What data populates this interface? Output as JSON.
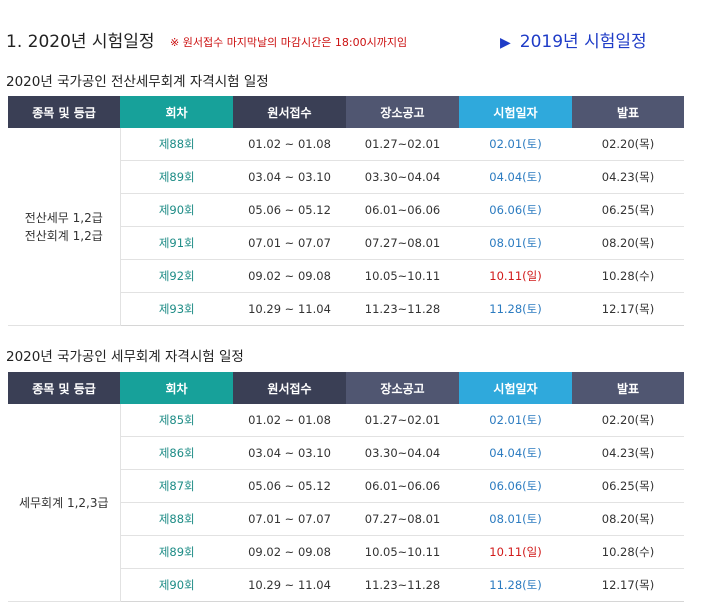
{
  "header": {
    "title": "1. 2020년 시험일정",
    "note": "※ 원서접수 마지막날의 마감시간은 18:00시까지임",
    "link_label": "2019년 시험일정"
  },
  "columns": [
    "종목 및 등급",
    "회차",
    "원서접수",
    "장소공고",
    "시험일자",
    "발표"
  ],
  "sections": [
    {
      "title": "2020년 국가공인 전산세무회계 자격시험 일정",
      "grade_lines": [
        "전산세무 1,2급",
        "전산회계 1,2급"
      ],
      "rows": [
        {
          "round": "제88회",
          "apply": "01.02 ~ 01.08",
          "venue": "01.27~02.01",
          "exam": "02.01(토)",
          "result": "02.20(목)",
          "exam_color": "blue"
        },
        {
          "round": "제89회",
          "apply": "03.04 ~ 03.10",
          "venue": "03.30~04.04",
          "exam": "04.04(토)",
          "result": "04.23(목)",
          "exam_color": "blue"
        },
        {
          "round": "제90회",
          "apply": "05.06 ~ 05.12",
          "venue": "06.01~06.06",
          "exam": "06.06(토)",
          "result": "06.25(목)",
          "exam_color": "blue"
        },
        {
          "round": "제91회",
          "apply": "07.01 ~ 07.07",
          "venue": "07.27~08.01",
          "exam": "08.01(토)",
          "result": "08.20(목)",
          "exam_color": "blue"
        },
        {
          "round": "제92회",
          "apply": "09.02 ~ 09.08",
          "venue": "10.05~10.11",
          "exam": "10.11(일)",
          "result": "10.28(수)",
          "exam_color": "red"
        },
        {
          "round": "제93회",
          "apply": "10.29 ~ 11.04",
          "venue": "11.23~11.28",
          "exam": "11.28(토)",
          "result": "12.17(목)",
          "exam_color": "blue"
        }
      ]
    },
    {
      "title": "2020년 국가공인 세무회계 자격시험 일정",
      "grade_lines": [
        "세무회계 1,2,3급"
      ],
      "rows": [
        {
          "round": "제85회",
          "apply": "01.02 ~ 01.08",
          "venue": "01.27~02.01",
          "exam": "02.01(토)",
          "result": "02.20(목)",
          "exam_color": "blue"
        },
        {
          "round": "제86회",
          "apply": "03.04 ~ 03.10",
          "venue": "03.30~04.04",
          "exam": "04.04(토)",
          "result": "04.23(목)",
          "exam_color": "blue"
        },
        {
          "round": "제87회",
          "apply": "05.06 ~ 05.12",
          "venue": "06.01~06.06",
          "exam": "06.06(토)",
          "result": "06.25(목)",
          "exam_color": "blue"
        },
        {
          "round": "제88회",
          "apply": "07.01 ~ 07.07",
          "venue": "07.27~08.01",
          "exam": "08.01(토)",
          "result": "08.20(목)",
          "exam_color": "blue"
        },
        {
          "round": "제89회",
          "apply": "09.02 ~ 09.08",
          "venue": "10.05~10.11",
          "exam": "10.11(일)",
          "result": "10.28(수)",
          "exam_color": "red"
        },
        {
          "round": "제90회",
          "apply": "10.29 ~ 11.04",
          "venue": "11.23~11.28",
          "exam": "11.28(토)",
          "result": "12.17(목)",
          "exam_color": "blue"
        }
      ]
    }
  ],
  "colors": {
    "header_dark": "#3a3f55",
    "header_teal": "#17a19a",
    "header_mid": "#505671",
    "header_sky": "#2fa9dc",
    "round_text": "#1e8c86",
    "date_blue": "#2b7bc0",
    "date_red": "#d11a1a"
  }
}
